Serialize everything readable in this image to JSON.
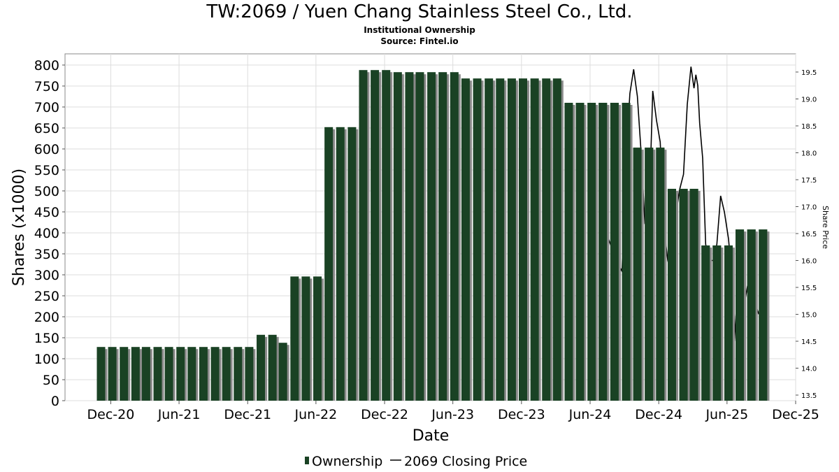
{
  "title": "TW:2069 / Yuen Chang Stainless Steel Co., Ltd.",
  "subtitle1": "Institutional Ownership",
  "subtitle2": "Source: Fintel.io",
  "colors": {
    "bar": "#1a4224",
    "bar_shadow": "#8a8a8a",
    "line": "#000000",
    "grid": "#dddddd"
  },
  "chart_data": {
    "type": "bar",
    "xlabel": "Date",
    "ylabel": "Shares (x1000)",
    "y2label": "Share Price",
    "x_ticks": [
      "Dec-20",
      "Jun-21",
      "Dec-21",
      "Jun-22",
      "Dec-22",
      "Jun-23",
      "Dec-23",
      "Jun-24",
      "Dec-24",
      "Jun-25",
      "Dec-25"
    ],
    "x_range": [
      "2020-08-01",
      "2025-12-01"
    ],
    "ylim": [
      0,
      800
    ],
    "y_ticks": [
      0,
      50,
      100,
      150,
      200,
      250,
      300,
      350,
      400,
      450,
      500,
      550,
      600,
      650,
      700,
      750,
      800
    ],
    "y2lim": [
      13.4,
      19.65
    ],
    "y2_ticks": [
      13.5,
      14.0,
      14.5,
      15.0,
      15.5,
      16.0,
      16.5,
      17.0,
      17.5,
      18.0,
      18.5,
      19.0,
      19.5
    ],
    "grid": true,
    "legend_position": "bottom-center",
    "series": [
      {
        "name": "Ownership",
        "style": "bar",
        "dates": [
          "2020-11-05",
          "2020-12-05",
          "2021-01-05",
          "2021-02-05",
          "2021-03-05",
          "2021-04-05",
          "2021-05-05",
          "2021-06-05",
          "2021-07-05",
          "2021-08-05",
          "2021-09-05",
          "2021-10-05",
          "2021-11-05",
          "2021-12-05",
          "2022-01-05",
          "2022-02-05",
          "2022-03-05",
          "2022-04-05",
          "2022-05-05",
          "2022-06-05",
          "2022-07-05",
          "2022-08-05",
          "2022-09-05",
          "2022-10-05",
          "2022-11-05",
          "2022-12-05",
          "2023-01-05",
          "2023-02-05",
          "2023-03-05",
          "2023-04-05",
          "2023-05-05",
          "2023-06-05",
          "2023-07-05",
          "2023-08-05",
          "2023-09-05",
          "2023-10-05",
          "2023-11-05",
          "2023-12-05",
          "2024-01-05",
          "2024-02-05",
          "2024-03-05",
          "2024-04-05",
          "2024-05-05",
          "2024-06-05",
          "2024-07-05",
          "2024-08-05",
          "2024-09-05",
          "2024-10-05",
          "2024-11-05",
          "2024-12-05",
          "2025-01-05",
          "2025-02-05",
          "2025-03-05",
          "2025-04-05",
          "2025-05-05",
          "2025-06-05",
          "2025-07-05",
          "2025-08-05",
          "2025-09-05"
        ],
        "values": [
          128,
          128,
          128,
          128,
          128,
          128,
          128,
          128,
          128,
          128,
          128,
          128,
          128,
          128,
          157,
          157,
          138,
          296,
          296,
          296,
          652,
          652,
          652,
          788,
          788,
          788,
          783,
          783,
          783,
          783,
          783,
          783,
          768,
          768,
          768,
          768,
          768,
          768,
          768,
          768,
          768,
          710,
          710,
          710,
          710,
          710,
          710,
          603,
          603,
          603,
          505,
          505,
          505,
          370,
          370,
          370,
          408,
          408,
          408
        ]
      },
      {
        "name": "2069 Closing Price",
        "style": "line",
        "dates": [
          "2024-07-01",
          "2024-07-20",
          "2024-08-10",
          "2024-08-25",
          "2024-09-05",
          "2024-09-15",
          "2024-09-25",
          "2024-10-05",
          "2024-10-15",
          "2024-10-25",
          "2024-11-05",
          "2024-11-15",
          "2024-11-25",
          "2024-12-05",
          "2024-12-15",
          "2024-12-25",
          "2025-01-05",
          "2025-01-15",
          "2025-01-25",
          "2025-02-05",
          "2025-02-15",
          "2025-02-25",
          "2025-03-05",
          "2025-03-10",
          "2025-03-15",
          "2025-03-20",
          "2025-03-28",
          "2025-04-05",
          "2025-04-15",
          "2025-04-25",
          "2025-05-05",
          "2025-05-15",
          "2025-05-25",
          "2025-06-05",
          "2025-06-15",
          "2025-06-25",
          "2025-07-05",
          "2025-07-15",
          "2025-07-25",
          "2025-08-05",
          "2025-08-15",
          "2025-08-25"
        ],
        "values": [
          16.9,
          16.4,
          16.0,
          15.8,
          17.9,
          19.1,
          19.55,
          19.05,
          18.0,
          16.7,
          16.8,
          19.15,
          18.6,
          18.2,
          16.6,
          16.0,
          15.7,
          16.8,
          17.3,
          17.6,
          18.9,
          19.6,
          19.2,
          19.45,
          19.25,
          18.55,
          17.9,
          16.3,
          16.0,
          16.0,
          16.3,
          17.2,
          16.9,
          16.4,
          15.6,
          14.5,
          14.7,
          15.1,
          15.5,
          15.3,
          15.2,
          15.0
        ]
      }
    ]
  }
}
